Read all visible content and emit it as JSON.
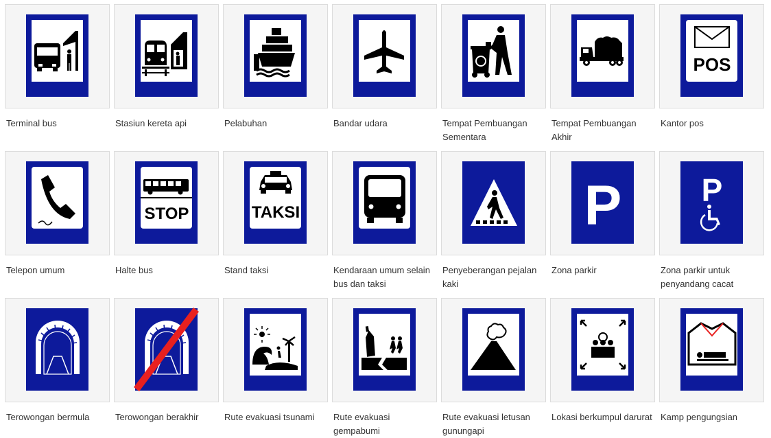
{
  "colors": {
    "sign_blue": "#0d1a9b",
    "sign_white": "#ffffff",
    "symbol_black": "#000000",
    "strike_red": "#e8201f",
    "tile_bg": "#f5f5f5",
    "caption_text": "#333333"
  },
  "signs": [
    {
      "caption": "Terminal bus",
      "icon": "bus-terminal-icon"
    },
    {
      "caption": "Stasiun kereta api",
      "icon": "train-station-icon"
    },
    {
      "caption": "Pelabuhan",
      "icon": "ship-icon"
    },
    {
      "caption": "Bandar udara",
      "icon": "airplane-icon"
    },
    {
      "caption": "Tempat Pembuangan Sementara",
      "icon": "waste-bin-icon"
    },
    {
      "caption": "Tempat Pembuangan Akhir",
      "icon": "garbage-truck-icon"
    },
    {
      "caption": "Kantor pos",
      "icon": "post-office-icon",
      "label": "POS"
    },
    {
      "caption": "Telepon umum",
      "icon": "telephone-icon"
    },
    {
      "caption": "Halte bus",
      "icon": "bus-stop-icon",
      "label": "STOP"
    },
    {
      "caption": "Stand taksi",
      "icon": "taxi-icon",
      "label": "TAKSI"
    },
    {
      "caption": "Kendaraan umum selain bus dan taksi",
      "icon": "public-vehicle-icon"
    },
    {
      "caption": "Penyeberangan pejalan kaki",
      "icon": "pedestrian-crossing-icon"
    },
    {
      "caption": "Zona parkir",
      "icon": "parking-icon",
      "label": "P"
    },
    {
      "caption": "Zona parkir untuk penyandang cacat",
      "icon": "disabled-parking-icon",
      "label": "P"
    },
    {
      "caption": "Terowongan bermula",
      "icon": "tunnel-icon"
    },
    {
      "caption": "Terowongan berakhir",
      "icon": "tunnel-end-icon"
    },
    {
      "caption": "Rute evakuasi tsunami",
      "icon": "tsunami-icon"
    },
    {
      "caption": "Rute evakuasi gempabumi",
      "icon": "earthquake-icon"
    },
    {
      "caption": "Rute evakuasi letusan gunungapi",
      "icon": "volcano-icon"
    },
    {
      "caption": "Lokasi berkumpul darurat",
      "icon": "assembly-point-icon"
    },
    {
      "caption": "Kamp pengungsian",
      "icon": "refugee-camp-icon"
    }
  ]
}
